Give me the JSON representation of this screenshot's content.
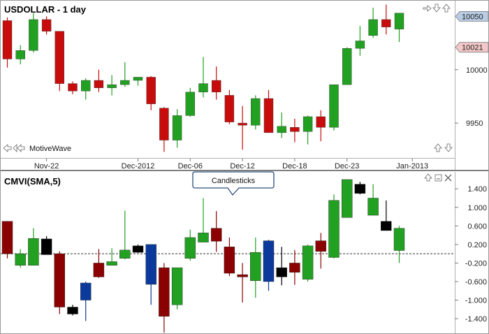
{
  "top_panel": {
    "title": "USDOLLAR - 1 day",
    "watermark": "MotiveWave",
    "price_tags": [
      {
        "label": "10050",
        "value": 10050,
        "color": "#b8cce4"
      },
      {
        "label": "10021",
        "value": 10021,
        "color": "#f4c8c8"
      }
    ]
  },
  "bottom_panel": {
    "title": "CMVI(SMA,5)",
    "tooltip": "Candlesticks"
  },
  "chart_data": [
    {
      "type": "candlestick",
      "title": "USDOLLAR - 1 day",
      "y_axis": {
        "ticks": [
          9950,
          10000
        ],
        "range": [
          9918,
          10064
        ]
      },
      "x_axis": {
        "labels": [
          {
            "label": "Nov-22",
            "bar": 3
          },
          {
            "label": "Dec-2012",
            "bar": 10
          },
          {
            "label": "Dec-06",
            "bar": 14
          },
          {
            "label": "Dec-12",
            "bar": 18
          },
          {
            "label": "Dec-18",
            "bar": 22
          },
          {
            "label": "Dec-23",
            "bar": 26
          },
          {
            "label": "Jan-2013",
            "bar": 31
          }
        ]
      },
      "colors": {
        "up": "#22a022",
        "down": "#c80c0c"
      },
      "bars": [
        {
          "o": 10046,
          "h": 10049,
          "l": 10002,
          "c": 10010
        },
        {
          "o": 10010,
          "h": 10023,
          "l": 10005,
          "c": 10018
        },
        {
          "o": 10018,
          "h": 10053,
          "l": 10016,
          "c": 10047
        },
        {
          "o": 10047,
          "h": 10050,
          "l": 10033,
          "c": 10036
        },
        {
          "o": 10036,
          "h": 10036,
          "l": 9980,
          "c": 9987
        },
        {
          "o": 9987,
          "h": 9989,
          "l": 9977,
          "c": 9980
        },
        {
          "o": 9980,
          "h": 9992,
          "l": 9972,
          "c": 9990
        },
        {
          "o": 9990,
          "h": 10000,
          "l": 9979,
          "c": 9983
        },
        {
          "o": 9983,
          "h": 9995,
          "l": 9976,
          "c": 9986
        },
        {
          "o": 9986,
          "h": 10007,
          "l": 9984,
          "c": 9990
        },
        {
          "o": 9990,
          "h": 9993,
          "l": 9985,
          "c": 9993
        },
        {
          "o": 9993,
          "h": 9994,
          "l": 9962,
          "c": 9968
        },
        {
          "o": 9964,
          "h": 9965,
          "l": 9923,
          "c": 9934
        },
        {
          "o": 9934,
          "h": 9963,
          "l": 9927,
          "c": 9957
        },
        {
          "o": 9957,
          "h": 9983,
          "l": 9956,
          "c": 9979
        },
        {
          "o": 9979,
          "h": 10012,
          "l": 9974,
          "c": 9987
        },
        {
          "o": 9990,
          "h": 10003,
          "l": 9972,
          "c": 9979
        },
        {
          "o": 9976,
          "h": 9981,
          "l": 9949,
          "c": 9951
        },
        {
          "o": 9950,
          "h": 9966,
          "l": 9925,
          "c": 9948
        },
        {
          "o": 9948,
          "h": 9976,
          "l": 9944,
          "c": 9973
        },
        {
          "o": 9973,
          "h": 9981,
          "l": 9942,
          "c": 9941
        },
        {
          "o": 9941,
          "h": 9960,
          "l": 9936,
          "c": 9947
        },
        {
          "o": 9946,
          "h": 9954,
          "l": 9932,
          "c": 9942
        },
        {
          "o": 9942,
          "h": 9957,
          "l": 9930,
          "c": 9956
        },
        {
          "o": 9956,
          "h": 9962,
          "l": 9933,
          "c": 9946
        },
        {
          "o": 9946,
          "h": 9986,
          "l": 9943,
          "c": 9986
        },
        {
          "o": 9986,
          "h": 10021,
          "l": 9986,
          "c": 10020
        },
        {
          "o": 10020,
          "h": 10041,
          "l": 10013,
          "c": 10027
        },
        {
          "o": 10032,
          "h": 10058,
          "l": 10030,
          "c": 10047
        },
        {
          "o": 10047,
          "h": 10061,
          "l": 10033,
          "c": 10040
        },
        {
          "o": 10038,
          "h": 10052,
          "l": 10026,
          "c": 10053
        }
      ]
    },
    {
      "type": "candlestick",
      "title": "CMVI(SMA,5)",
      "y_axis": {
        "ticks": [
          -1.4,
          -1.0,
          -0.6,
          -0.2,
          0.2,
          0.6,
          1.0,
          1.4
        ],
        "range": [
          -1.7,
          1.75
        ]
      },
      "zero_line": 0,
      "bars": [
        {
          "o": 0.7,
          "h": 0.7,
          "l": -0.1,
          "c": 0.0,
          "color": "#8b0000"
        },
        {
          "o": -0.25,
          "h": 0.1,
          "l": -0.3,
          "c": 0.0,
          "color": "#22a022"
        },
        {
          "o": -0.25,
          "h": 0.55,
          "l": -0.25,
          "c": 0.33,
          "color": "#22a022"
        },
        {
          "o": 0.32,
          "h": 0.38,
          "l": 0.0,
          "c": -0.02,
          "color": "#000000"
        },
        {
          "o": 0.0,
          "h": 0.05,
          "l": -1.3,
          "c": -1.15,
          "color": "#8b0000"
        },
        {
          "o": -1.15,
          "h": -1.1,
          "l": -1.33,
          "c": -1.3,
          "color": "#000000"
        },
        {
          "o": -1.0,
          "h": -0.6,
          "l": -1.45,
          "c": -0.63,
          "color": "#0b3a9c"
        },
        {
          "o": -0.2,
          "h": 0.1,
          "l": -0.52,
          "c": -0.5,
          "color": "#8b0000"
        },
        {
          "o": -0.25,
          "h": 0.12,
          "l": -0.25,
          "c": -0.17,
          "color": "#22a022"
        },
        {
          "o": -0.1,
          "h": 0.93,
          "l": -0.12,
          "c": 0.08,
          "color": "#22a022"
        },
        {
          "o": 0.17,
          "h": 0.2,
          "l": 0.02,
          "c": 0.03,
          "color": "#000000"
        },
        {
          "o": -0.66,
          "h": 0.2,
          "l": -1.1,
          "c": 0.2,
          "color": "#0b3a9c"
        },
        {
          "o": -0.3,
          "h": -0.2,
          "l": -1.7,
          "c": -1.35,
          "color": "#8b0000"
        },
        {
          "o": -0.3,
          "h": -0.3,
          "l": -1.2,
          "c": -1.1,
          "color": "#22a022"
        },
        {
          "o": -0.1,
          "h": 0.52,
          "l": -0.15,
          "c": 0.35,
          "color": "#22a022"
        },
        {
          "o": 0.25,
          "h": 1.2,
          "l": 0.25,
          "c": 0.45,
          "color": "#22a022"
        },
        {
          "o": 0.55,
          "h": 0.92,
          "l": 0.04,
          "c": 0.27,
          "color": "#8b0000"
        },
        {
          "o": 0.15,
          "h": 0.35,
          "l": -0.48,
          "c": -0.42,
          "color": "#8b0000"
        },
        {
          "o": -0.45,
          "h": -0.2,
          "l": -1.05,
          "c": -0.5,
          "color": "#8b0000"
        },
        {
          "o": -0.58,
          "h": 0.35,
          "l": -0.95,
          "c": 0.03,
          "color": "#22a022"
        },
        {
          "o": -0.6,
          "h": 0.3,
          "l": -0.8,
          "c": 0.28,
          "color": "#0b3a9c"
        },
        {
          "o": -0.3,
          "h": 0.15,
          "l": -0.68,
          "c": -0.5,
          "color": "#000000"
        },
        {
          "o": -0.2,
          "h": 0.08,
          "l": -0.67,
          "c": -0.4,
          "color": "#8b0000"
        },
        {
          "o": -0.55,
          "h": 0.2,
          "l": -0.6,
          "c": 0.17,
          "color": "#22a022"
        },
        {
          "o": 0.28,
          "h": 0.45,
          "l": -0.32,
          "c": 0.05,
          "color": "#8b0000"
        },
        {
          "o": -0.08,
          "h": 1.28,
          "l": -0.1,
          "c": 1.15,
          "color": "#22a022"
        },
        {
          "o": 0.78,
          "h": 1.6,
          "l": 0.78,
          "c": 1.6,
          "color": "#22a022"
        },
        {
          "o": 1.5,
          "h": 1.55,
          "l": 1.28,
          "c": 1.3,
          "color": "#000000"
        },
        {
          "o": 0.83,
          "h": 1.5,
          "l": 0.83,
          "c": 1.2,
          "color": "#22a022"
        },
        {
          "o": 0.7,
          "h": 1.15,
          "l": 0.5,
          "c": 0.5,
          "color": "#000000"
        },
        {
          "o": 0.07,
          "h": 0.6,
          "l": -0.2,
          "c": 0.55,
          "color": "#22a022"
        }
      ]
    }
  ]
}
